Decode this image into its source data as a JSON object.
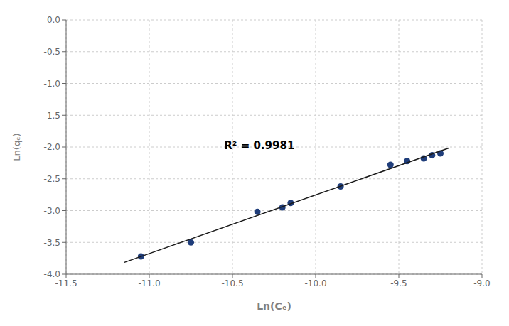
{
  "chart_data": {
    "type": "scatter",
    "x_label": "Ln(Cₑ)",
    "y_label": "Ln(qₑ)",
    "series": [
      {
        "type": "scatter",
        "color": "#1f3d7a",
        "x": [
          -11.05,
          -10.75,
          -10.35,
          -10.2,
          -10.15,
          -9.85,
          -9.55,
          -9.45,
          -9.35,
          -9.3,
          -9.25
        ],
        "values": [
          -3.72,
          -3.5,
          -3.02,
          -2.95,
          -2.88,
          -2.62,
          -2.28,
          -2.22,
          -2.18,
          -2.13,
          -2.1
        ]
      },
      {
        "type": "line",
        "color": "#1a1a1a",
        "x": [
          -11.15,
          -9.2
        ],
        "values": [
          -3.8142,
          -2.0161
        ]
      }
    ],
    "annotations": [
      {
        "text": "R² = 0.9981",
        "x": -10.55,
        "y": -2.08
      }
    ],
    "xlim": [
      -11.5,
      -9.0
    ],
    "ylim": [
      -4.0,
      0.0
    ],
    "xticks": [
      -11.5,
      {
        "value": -11,
        "label": "-11.0"
      },
      -10.5,
      {
        "value": -10,
        "label": "-10.0"
      },
      -9.5,
      {
        "value": -9,
        "label": "-9.0"
      }
    ],
    "yticks": [
      {
        "value": 0,
        "label": "0.0"
      },
      -0.5,
      {
        "value": -1,
        "label": "-1.0"
      },
      -1.5,
      {
        "value": -2,
        "label": "-2.0"
      },
      -2.5,
      {
        "value": -3,
        "label": "-3.0"
      },
      -3.5,
      {
        "value": -4,
        "label": "-4.0"
      }
    ],
    "grid": true
  }
}
